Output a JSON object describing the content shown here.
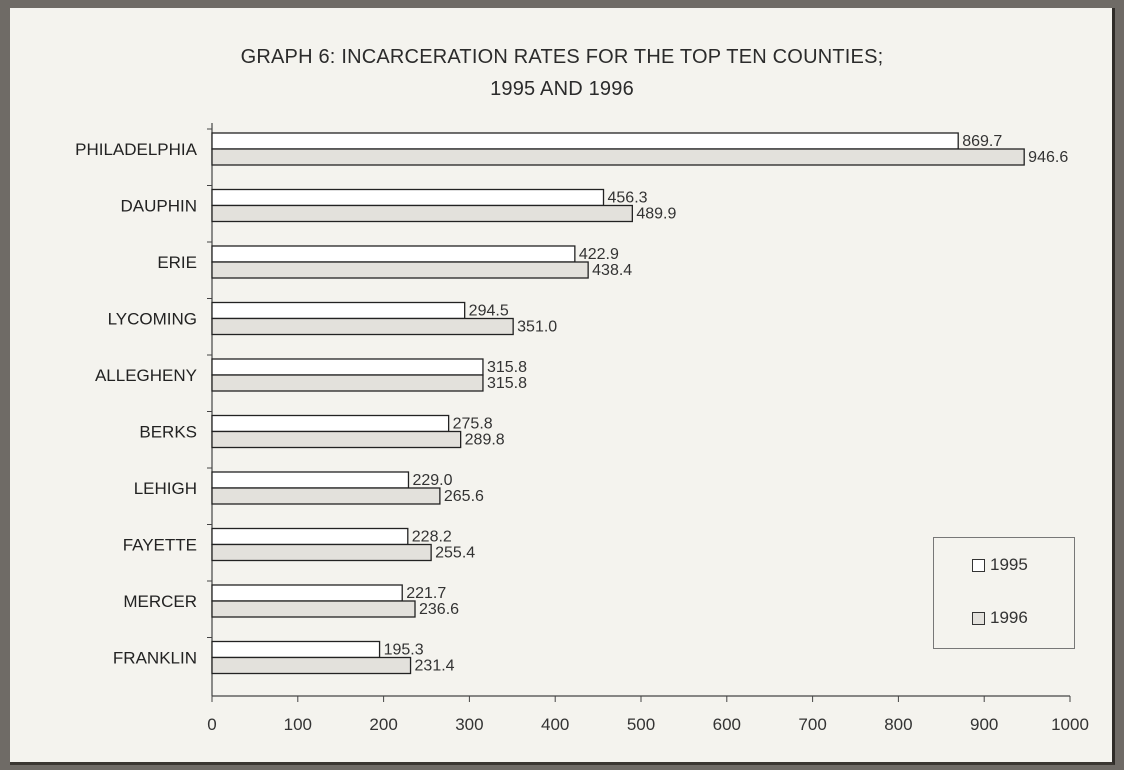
{
  "chart_data": {
    "type": "bar",
    "orientation": "horizontal",
    "title": "GRAPH 6: INCARCERATION RATES FOR THE TOP TEN COUNTIES;",
    "subtitle": "1995 AND 1996",
    "categories": [
      "PHILADELPHIA",
      "DAUPHIN",
      "ERIE",
      "LYCOMING",
      "ALLEGHENY",
      "BERKS",
      "LEHIGH",
      "FAYETTE",
      "MERCER",
      "FRANKLIN"
    ],
    "series": [
      {
        "name": "1995",
        "color": "#ffffff",
        "values": [
          869.7,
          456.3,
          422.9,
          294.5,
          315.8,
          275.8,
          229.0,
          228.2,
          221.7,
          195.3
        ],
        "labels": [
          "869.7",
          "456.3",
          "422.9",
          "294.5",
          "315.8",
          "275.8",
          "229.0",
          "228.2",
          "221.7",
          "195.3"
        ]
      },
      {
        "name": "1996",
        "color": "#e3e1dc",
        "values": [
          946.6,
          489.9,
          438.4,
          351.0,
          315.8,
          289.8,
          265.6,
          255.4,
          236.6,
          231.4
        ],
        "labels": [
          "946.6",
          "489.9",
          "438.4",
          "351.0",
          "315.8",
          "289.8",
          "265.6",
          "255.4",
          "236.6",
          "231.4"
        ]
      }
    ],
    "xlim": [
      0,
      1000
    ],
    "xticks": [
      0,
      100,
      200,
      300,
      400,
      500,
      600,
      700,
      800,
      900,
      1000
    ],
    "grid": false,
    "legend_position": "bottom-right"
  }
}
